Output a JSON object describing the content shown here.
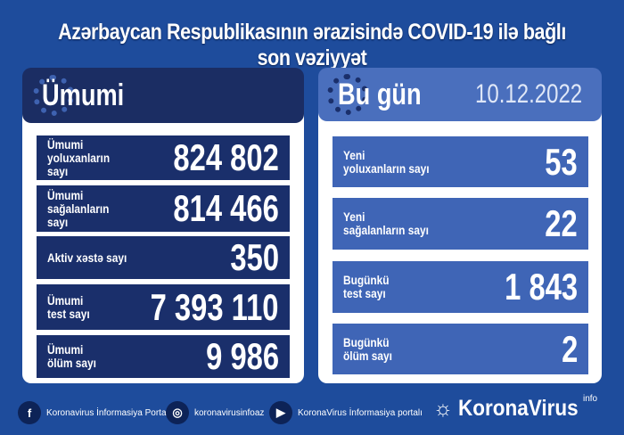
{
  "title": "Azərbaycan Respublikasının ərazisində COVID-19 ilə bağlı son vəziyyət",
  "colors": {
    "background": "#1e4c9c",
    "total_panel": "#1a2f6b",
    "today_panel": "#3f65b6"
  },
  "total": {
    "heading": "Ümumi",
    "rows": [
      {
        "label": "Ümumi\nyoluxanların sayı",
        "value": "824 802"
      },
      {
        "label": "Ümumi\nsağalanların sayı",
        "value": "814 466"
      },
      {
        "label": "Aktiv xəstə sayı",
        "value": "350"
      },
      {
        "label": "Ümumi\ntest sayı",
        "value": "7 393 110"
      },
      {
        "label": "Ümumi\nölüm sayı",
        "value": "9 986"
      }
    ]
  },
  "today": {
    "heading": "Bu gün",
    "date": "10.12.2022",
    "rows": [
      {
        "label": "Yeni\nyoluxanların sayı",
        "value": "53"
      },
      {
        "label": "Yeni\nsağalanların sayı",
        "value": "22"
      },
      {
        "label": "Bugünkü\ntest sayı",
        "value": "1 843"
      },
      {
        "label": "Bugünkü\nölüm sayı",
        "value": "2"
      }
    ]
  },
  "footer": {
    "facebook": "Koronavirus İnformasiya Portalı",
    "instagram": "koronavirusinfoaz",
    "youtube": "KoronaVirus İnformasiya portalı",
    "brand": "KoronaVirus",
    "brand_sup": "info"
  }
}
